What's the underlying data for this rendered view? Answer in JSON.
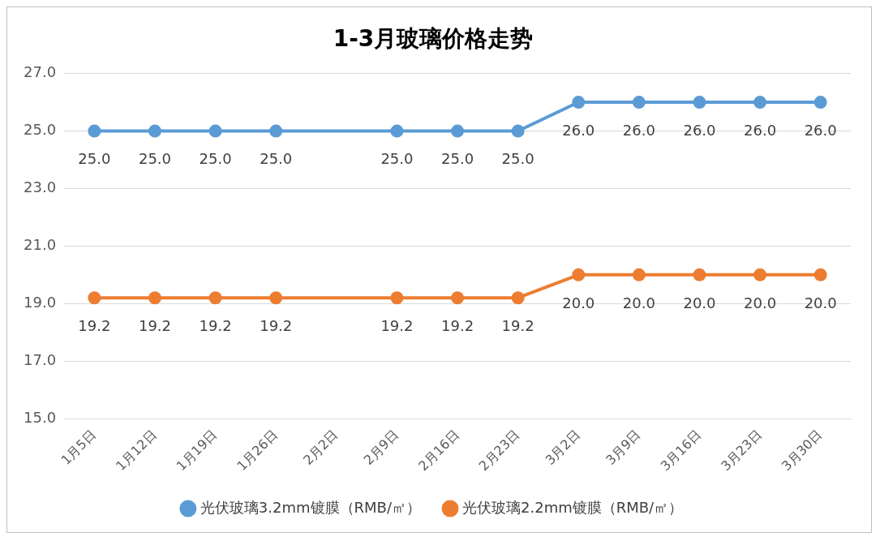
{
  "chart_data": {
    "type": "line",
    "title": "1-3月玻璃价格走势",
    "categories": [
      "1月5日",
      "1月12日",
      "1月19日",
      "1月26日",
      "2月2日",
      "2月9日",
      "2月16日",
      "2月23日",
      "3月2日",
      "3月9日",
      "3月16日",
      "3月23日",
      "3月30日"
    ],
    "series": [
      {
        "name": "光伏玻璃3.2mm镀膜（RMB/㎡）",
        "color": "#5b9bd5",
        "values": [
          25,
          25,
          25,
          25,
          null,
          25,
          25,
          25,
          26,
          26,
          26,
          26,
          26
        ],
        "value_labels": [
          "25.0",
          "25.0",
          "25.0",
          "25.0",
          null,
          "25.0",
          "25.0",
          "25.0",
          "26.0",
          "26.0",
          "26.0",
          "26.0",
          "26.0"
        ]
      },
      {
        "name": "光伏玻璃2.2mm镀膜（RMB/㎡）",
        "color": "#ed7d31",
        "values": [
          19.2,
          19.2,
          19.2,
          19.2,
          null,
          19.2,
          19.2,
          19.2,
          20,
          20,
          20,
          20,
          20
        ],
        "value_labels": [
          "19.2",
          "19.2",
          "19.2",
          "19.2",
          null,
          "19.2",
          "19.2",
          "19.2",
          "20.0",
          "20.0",
          "20.0",
          "20.0",
          "20.0"
        ]
      }
    ],
    "ylim": [
      15,
      27
    ],
    "yticks": [
      {
        "value": 15,
        "label": "15.0"
      },
      {
        "value": 17,
        "label": "17.0"
      },
      {
        "value": 19,
        "label": "19.0"
      },
      {
        "value": 21,
        "label": "21.0"
      },
      {
        "value": 23,
        "label": "23.0"
      },
      {
        "value": 25,
        "label": "25.0"
      },
      {
        "value": 27,
        "label": "27.0"
      }
    ],
    "grid": "y",
    "legend": "bottom",
    "marker": "circle",
    "line_style": "solid"
  }
}
